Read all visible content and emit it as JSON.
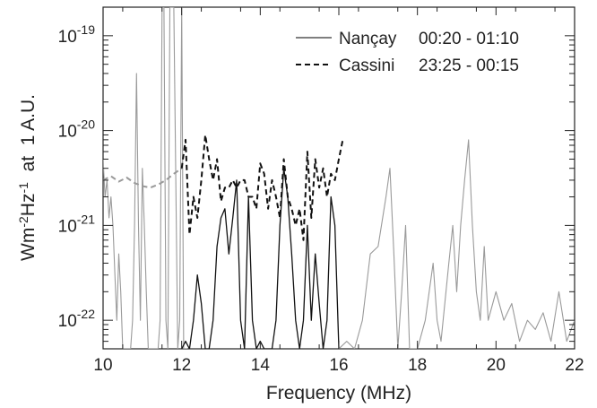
{
  "chart_data": {
    "type": "line",
    "title": "",
    "xlabel": "Frequency (MHz)",
    "ylabel": "Wm-2Hz-1  at 1 A.U.",
    "ylabel_parts": {
      "base": "Wm",
      "exp1": "-2",
      "mid": "Hz",
      "exp2": "-1",
      "suffix": "  at  1 A.U."
    },
    "xlim": [
      10,
      22
    ],
    "ylim": [
      5e-23,
      2e-19
    ],
    "yscale": "log",
    "x_ticks": [
      "10",
      "12",
      "14",
      "16",
      "18",
      "20",
      "22"
    ],
    "y_ticks": [
      {
        "base": "10",
        "exp": "-22",
        "value": 1e-22
      },
      {
        "base": "10",
        "exp": "-21",
        "value": 1e-21
      },
      {
        "base": "10",
        "exp": "-20",
        "value": 1e-20
      },
      {
        "base": "10",
        "exp": "-19",
        "value": 1e-19
      }
    ],
    "grid": false,
    "legend_position": "top-right",
    "colors": {
      "gray": "#9a9a9a",
      "black": "#111111"
    },
    "series": [
      {
        "name": "Nançay",
        "label_time": "00:20 - 01:10",
        "style": "solid",
        "segments": [
          {
            "color": "gray",
            "x": [
              10.0,
              10.05,
              10.1,
              10.15,
              10.2,
              10.25,
              10.3,
              10.35,
              10.4,
              10.45,
              10.5,
              10.6,
              10.7,
              10.75,
              10.8,
              10.85,
              10.9,
              10.95,
              11.0,
              11.05,
              11.1,
              11.15,
              11.2,
              11.3,
              11.4,
              11.45,
              11.5,
              11.55,
              11.6,
              11.65,
              11.7,
              11.8,
              11.9,
              11.95,
              12.0,
              12.05,
              12.1,
              12.15
            ],
            "y": [
              5e-21,
              2e-21,
              3e-21,
              1.2e-21,
              2e-21,
              1e-21,
              3e-22,
              1e-22,
              5e-22,
              2e-22,
              5e-23,
              5e-23,
              5e-23,
              1e-22,
              1e-21,
              4e-20,
              1e-21,
              1e-22,
              4e-21,
              1e-21,
              2e-22,
              5e-23,
              5e-23,
              5e-23,
              5e-23,
              1e-22,
              2e-19,
              2e-19,
              1e-22,
              5e-23,
              2e-19,
              2e-19,
              5e-23,
              1e-22,
              2e-19,
              5e-23,
              5e-23,
              5e-23
            ]
          },
          {
            "color": "black",
            "x": [
              12.0,
              12.1,
              12.2,
              12.3,
              12.4,
              12.5,
              12.6,
              12.7,
              12.8,
              12.9,
              13.0,
              13.1,
              13.2,
              13.3,
              13.4,
              13.5,
              13.6,
              13.7,
              13.8,
              13.9,
              14.0,
              14.1,
              14.2,
              14.3,
              14.4,
              14.5,
              14.6,
              14.7,
              14.8,
              14.9,
              15.0,
              15.1,
              15.2,
              15.3,
              15.4,
              15.5,
              15.6,
              15.7,
              15.8,
              15.9,
              16.0
            ],
            "y": [
              5e-23,
              6e-23,
              5e-23,
              1e-22,
              3e-22,
              1.5e-22,
              5e-23,
              5e-23,
              1e-22,
              6e-22,
              1.2e-21,
              1.5e-21,
              5e-22,
              1.2e-21,
              3e-21,
              1e-22,
              5e-23,
              2e-21,
              1e-22,
              5e-23,
              6e-23,
              5e-23,
              5e-23,
              5e-23,
              1e-22,
              1e-21,
              4e-21,
              2e-21,
              5e-22,
              1e-22,
              5e-23,
              1e-22,
              1e-21,
              1e-22,
              5e-22,
              1.5e-22,
              5e-23,
              1e-22,
              2e-21,
              1e-21,
              5e-23
            ]
          },
          {
            "color": "gray",
            "x": [
              16.0,
              16.2,
              16.4,
              16.6,
              16.8,
              17.0,
              17.2,
              17.3,
              17.4,
              17.5,
              17.6,
              17.7,
              17.8,
              18.0,
              18.2,
              18.3,
              18.4,
              18.5,
              18.6,
              18.8,
              18.9,
              19.0,
              19.1,
              19.2,
              19.3,
              19.4,
              19.5,
              19.6,
              19.7,
              19.8,
              20.0,
              20.2,
              20.4,
              20.6,
              20.8,
              21.0,
              21.2,
              21.4,
              21.6,
              21.8,
              22.0
            ],
            "y": [
              5e-23,
              6e-23,
              5e-23,
              1e-22,
              5e-22,
              6e-22,
              2e-21,
              4e-21,
              5e-22,
              5e-23,
              2e-22,
              1e-21,
              5e-23,
              5e-23,
              1e-22,
              2e-22,
              4e-22,
              1e-22,
              6e-23,
              4e-22,
              1e-21,
              2e-22,
              1e-21,
              3e-21,
              8e-21,
              1e-21,
              2e-22,
              1e-22,
              6e-22,
              1e-22,
              2e-22,
              1e-22,
              1.5e-22,
              6e-23,
              1e-22,
              8e-23,
              1.2e-22,
              6e-23,
              2e-22,
              6e-23,
              1e-22
            ]
          }
        ]
      },
      {
        "name": "Cassini",
        "label_time": "23:25 - 00:15",
        "style": "dashed",
        "segments": [
          {
            "color": "gray",
            "x": [
              10.0,
              10.2,
              10.4,
              10.6,
              10.8,
              11.0,
              11.2,
              11.4,
              11.6,
              11.8,
              12.0
            ],
            "y": [
              3e-21,
              3.3e-21,
              2.9e-21,
              3.2e-21,
              2.8e-21,
              2.6e-21,
              2.5e-21,
              2.7e-21,
              3e-21,
              3.5e-21,
              4e-21
            ]
          },
          {
            "color": "black",
            "x": [
              12.0,
              12.1,
              12.2,
              12.3,
              12.4,
              12.5,
              12.6,
              12.7,
              12.8,
              12.9,
              13.0,
              13.1,
              13.2,
              13.3,
              13.4,
              13.5,
              13.6,
              13.7,
              13.8,
              13.9,
              14.0,
              14.1,
              14.2,
              14.3,
              14.4,
              14.5,
              14.6,
              14.7,
              14.8,
              14.9,
              15.0,
              15.1,
              15.2,
              15.3,
              15.4,
              15.5,
              15.6,
              15.7,
              15.8,
              15.9,
              16.0,
              16.1
            ],
            "y": [
              4e-21,
              8e-21,
              8e-22,
              2e-21,
              1.2e-21,
              3e-21,
              9e-21,
              5e-21,
              3e-21,
              5e-21,
              1.8e-21,
              2.5e-21,
              2.5e-21,
              3e-21,
              2.5e-21,
              3e-21,
              3e-21,
              2e-21,
              2e-21,
              1.5e-21,
              4.5e-21,
              3.5e-21,
              1.5e-21,
              3e-21,
              2e-21,
              1.2e-21,
              5e-21,
              2e-21,
              1.5e-21,
              1e-21,
              1.5e-21,
              7e-22,
              6e-21,
              1.2e-21,
              5e-21,
              2.5e-21,
              4e-21,
              2e-21,
              3.5e-21,
              3e-21,
              5e-21,
              8e-21
            ]
          }
        ]
      }
    ]
  }
}
